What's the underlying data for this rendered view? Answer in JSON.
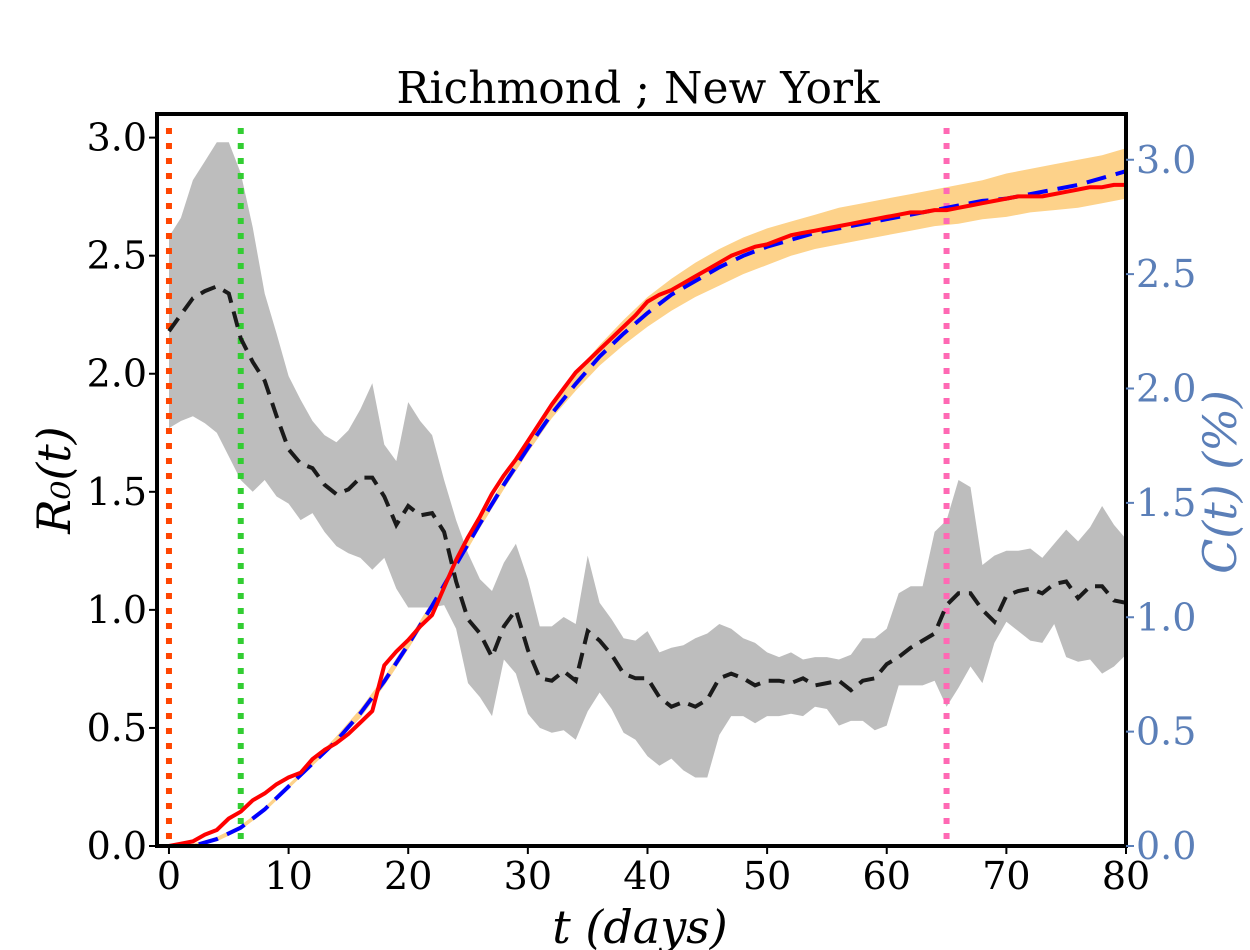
{
  "chart_data": {
    "type": "line",
    "title": "Richmond ; New York",
    "xlabel": "t (days)",
    "ylabel_left": "R₀(t)",
    "ylabel_right": "C(t) (%)",
    "xlim": [
      -1,
      80
    ],
    "ylim_left": [
      0,
      3.1
    ],
    "ylim_right": [
      0,
      3.2
    ],
    "xticks": [
      "0",
      "10",
      "20",
      "30",
      "40",
      "50",
      "60",
      "70",
      "80"
    ],
    "yticks_left": [
      "0.0",
      "0.5",
      "1.0",
      "1.5",
      "2.0",
      "2.5",
      "3.0"
    ],
    "yticks_right": [
      "0.0",
      "0.5",
      "1.0",
      "1.5",
      "2.0",
      "2.5",
      "3.0"
    ],
    "grid": false,
    "colors": {
      "r0_mean": "#1a1a1a",
      "r0_band": "#bdbdbd",
      "cases_observed": "#ff0000",
      "cases_model": "#0000ff",
      "cases_band": "#fdd28a",
      "right_axis": "#5b7fb8",
      "vline_start": "#ff4500",
      "vline_intervention": "#32cd32",
      "vline_late": "#ff69b4"
    },
    "vlines": [
      {
        "x": 0,
        "color_key": "vline_start"
      },
      {
        "x": 6,
        "color_key": "vline_intervention"
      },
      {
        "x": 65,
        "color_key": "vline_late"
      }
    ],
    "series": [
      {
        "id": "r0_mean",
        "axis": "left",
        "style": "dashed",
        "x": [
          0,
          1,
          2,
          3,
          4,
          5,
          6,
          7,
          8,
          9,
          10,
          11,
          12,
          13,
          14,
          15,
          16,
          17,
          18,
          19,
          20,
          21,
          22,
          23,
          24,
          25,
          26,
          27,
          28,
          29,
          30,
          31,
          32,
          33,
          34,
          35,
          36,
          37,
          38,
          39,
          40,
          41,
          42,
          43,
          44,
          45,
          46,
          47,
          48,
          49,
          50,
          51,
          52,
          53,
          54,
          55,
          56,
          57,
          58,
          59,
          60,
          61,
          62,
          63,
          64,
          65,
          66,
          67,
          68,
          69,
          70,
          71,
          72,
          73,
          74,
          75,
          76,
          77,
          78,
          79,
          80
        ],
        "values": [
          2.18,
          2.25,
          2.32,
          2.35,
          2.37,
          2.34,
          2.15,
          2.05,
          1.97,
          1.82,
          1.68,
          1.62,
          1.6,
          1.53,
          1.49,
          1.51,
          1.56,
          1.56,
          1.48,
          1.36,
          1.44,
          1.4,
          1.41,
          1.33,
          1.12,
          0.96,
          0.9,
          0.8,
          0.93,
          1.0,
          0.83,
          0.71,
          0.7,
          0.74,
          0.7,
          0.91,
          0.87,
          0.81,
          0.73,
          0.71,
          0.71,
          0.63,
          0.59,
          0.61,
          0.59,
          0.62,
          0.71,
          0.73,
          0.71,
          0.68,
          0.7,
          0.7,
          0.69,
          0.71,
          0.68,
          0.69,
          0.7,
          0.66,
          0.7,
          0.71,
          0.77,
          0.8,
          0.84,
          0.87,
          0.9,
          1.02,
          1.07,
          1.07,
          1.0,
          0.95,
          1.06,
          1.08,
          1.09,
          1.07,
          1.11,
          1.12,
          1.05,
          1.1,
          1.1,
          1.04,
          1.03
        ]
      },
      {
        "id": "r0_upper",
        "axis": "left",
        "style": "band",
        "x": [
          0,
          1,
          2,
          3,
          4,
          5,
          6,
          7,
          8,
          9,
          10,
          11,
          12,
          13,
          14,
          15,
          16,
          17,
          18,
          19,
          20,
          21,
          22,
          23,
          24,
          25,
          26,
          27,
          28,
          29,
          30,
          31,
          32,
          33,
          34,
          35,
          36,
          37,
          38,
          39,
          40,
          41,
          42,
          43,
          44,
          45,
          46,
          47,
          48,
          49,
          50,
          51,
          52,
          53,
          54,
          55,
          56,
          57,
          58,
          59,
          60,
          61,
          62,
          63,
          64,
          65,
          66,
          67,
          68,
          69,
          70,
          71,
          72,
          73,
          74,
          75,
          76,
          77,
          78,
          79,
          80
        ],
        "values": [
          2.58,
          2.66,
          2.82,
          2.9,
          2.98,
          2.98,
          2.85,
          2.62,
          2.34,
          2.17,
          1.99,
          1.89,
          1.8,
          1.74,
          1.71,
          1.76,
          1.85,
          1.96,
          1.7,
          1.63,
          1.88,
          1.8,
          1.74,
          1.55,
          1.38,
          1.24,
          1.13,
          1.08,
          1.2,
          1.28,
          1.13,
          0.93,
          0.93,
          0.97,
          0.94,
          1.23,
          1.03,
          0.96,
          0.88,
          0.87,
          0.91,
          0.82,
          0.84,
          0.85,
          0.88,
          0.9,
          0.94,
          0.92,
          0.88,
          0.86,
          0.82,
          0.8,
          0.82,
          0.79,
          0.8,
          0.8,
          0.79,
          0.81,
          0.88,
          0.88,
          0.92,
          1.07,
          1.1,
          1.1,
          1.33,
          1.38,
          1.55,
          1.52,
          1.19,
          1.23,
          1.25,
          1.25,
          1.26,
          1.22,
          1.28,
          1.34,
          1.29,
          1.35,
          1.44,
          1.36,
          1.3
        ]
      },
      {
        "id": "r0_lower",
        "axis": "left",
        "style": "band",
        "x": [
          0,
          1,
          2,
          3,
          4,
          5,
          6,
          7,
          8,
          9,
          10,
          11,
          12,
          13,
          14,
          15,
          16,
          17,
          18,
          19,
          20,
          21,
          22,
          23,
          24,
          25,
          26,
          27,
          28,
          29,
          30,
          31,
          32,
          33,
          34,
          35,
          36,
          37,
          38,
          39,
          40,
          41,
          42,
          43,
          44,
          45,
          46,
          47,
          48,
          49,
          50,
          51,
          52,
          53,
          54,
          55,
          56,
          57,
          58,
          59,
          60,
          61,
          62,
          63,
          64,
          65,
          66,
          67,
          68,
          69,
          70,
          71,
          72,
          73,
          74,
          75,
          76,
          77,
          78,
          79,
          80
        ],
        "values": [
          1.77,
          1.8,
          1.82,
          1.79,
          1.75,
          1.65,
          1.55,
          1.5,
          1.55,
          1.48,
          1.45,
          1.38,
          1.41,
          1.33,
          1.27,
          1.24,
          1.22,
          1.17,
          1.22,
          1.09,
          1.01,
          1.01,
          1.01,
          1.02,
          0.92,
          0.69,
          0.63,
          0.55,
          0.79,
          0.73,
          0.56,
          0.5,
          0.48,
          0.49,
          0.45,
          0.57,
          0.65,
          0.58,
          0.48,
          0.45,
          0.38,
          0.34,
          0.37,
          0.32,
          0.29,
          0.29,
          0.47,
          0.55,
          0.55,
          0.52,
          0.55,
          0.55,
          0.56,
          0.55,
          0.59,
          0.58,
          0.51,
          0.53,
          0.53,
          0.49,
          0.51,
          0.68,
          0.68,
          0.68,
          0.7,
          0.59,
          0.67,
          0.76,
          0.69,
          0.86,
          0.95,
          0.91,
          0.87,
          0.86,
          0.94,
          0.8,
          0.78,
          0.79,
          0.73,
          0.76,
          0.81
        ]
      },
      {
        "id": "cases_observed",
        "axis": "right",
        "style": "solid",
        "x": [
          0,
          1,
          2,
          3,
          4,
          5,
          6,
          7,
          8,
          9,
          10,
          11,
          12,
          13,
          14,
          15,
          16,
          17,
          18,
          19,
          20,
          21,
          22,
          23,
          24,
          25,
          26,
          27,
          28,
          29,
          30,
          31,
          32,
          33,
          34,
          35,
          36,
          37,
          38,
          39,
          40,
          41,
          42,
          43,
          44,
          45,
          46,
          47,
          48,
          49,
          50,
          51,
          52,
          53,
          54,
          55,
          56,
          57,
          58,
          59,
          60,
          61,
          62,
          63,
          64,
          65,
          66,
          67,
          68,
          69,
          70,
          71,
          72,
          73,
          74,
          75,
          76,
          77,
          78,
          79,
          80
        ],
        "values": [
          0.0,
          0.01,
          0.02,
          0.05,
          0.07,
          0.12,
          0.15,
          0.2,
          0.23,
          0.27,
          0.3,
          0.32,
          0.38,
          0.42,
          0.45,
          0.49,
          0.54,
          0.59,
          0.79,
          0.85,
          0.9,
          0.96,
          1.01,
          1.13,
          1.25,
          1.35,
          1.44,
          1.54,
          1.62,
          1.69,
          1.77,
          1.85,
          1.93,
          2.0,
          2.07,
          2.12,
          2.17,
          2.22,
          2.27,
          2.32,
          2.38,
          2.41,
          2.43,
          2.46,
          2.49,
          2.52,
          2.55,
          2.58,
          2.6,
          2.62,
          2.63,
          2.65,
          2.67,
          2.68,
          2.69,
          2.7,
          2.71,
          2.72,
          2.73,
          2.74,
          2.75,
          2.76,
          2.77,
          2.77,
          2.78,
          2.78,
          2.79,
          2.8,
          2.81,
          2.82,
          2.83,
          2.84,
          2.84,
          2.84,
          2.85,
          2.86,
          2.87,
          2.88,
          2.88,
          2.89,
          2.89
        ]
      },
      {
        "id": "cases_model",
        "axis": "right",
        "style": "dashed",
        "x": [
          0,
          2,
          4,
          6,
          8,
          10,
          12,
          14,
          16,
          18,
          20,
          22,
          24,
          26,
          28,
          30,
          32,
          34,
          36,
          38,
          40,
          42,
          44,
          46,
          48,
          50,
          52,
          54,
          56,
          58,
          60,
          62,
          64,
          66,
          68,
          70,
          72,
          74,
          76,
          78,
          80
        ],
        "values": [
          0.0,
          0.0,
          0.03,
          0.08,
          0.16,
          0.26,
          0.36,
          0.46,
          0.58,
          0.72,
          0.88,
          1.05,
          1.23,
          1.41,
          1.58,
          1.74,
          1.89,
          2.02,
          2.14,
          2.24,
          2.33,
          2.41,
          2.47,
          2.53,
          2.58,
          2.62,
          2.65,
          2.68,
          2.7,
          2.72,
          2.74,
          2.76,
          2.78,
          2.8,
          2.82,
          2.83,
          2.85,
          2.87,
          2.89,
          2.92,
          2.95
        ]
      },
      {
        "id": "cases_band_upper",
        "axis": "right",
        "style": "band",
        "x": [
          0,
          2,
          4,
          6,
          8,
          10,
          12,
          14,
          16,
          18,
          20,
          22,
          24,
          26,
          28,
          30,
          32,
          34,
          36,
          38,
          40,
          42,
          44,
          46,
          48,
          50,
          52,
          54,
          56,
          58,
          60,
          62,
          64,
          66,
          68,
          70,
          72,
          74,
          76,
          78,
          80
        ],
        "values": [
          0.0,
          0.01,
          0.04,
          0.09,
          0.17,
          0.27,
          0.37,
          0.48,
          0.6,
          0.74,
          0.9,
          1.07,
          1.25,
          1.43,
          1.6,
          1.77,
          1.93,
          2.07,
          2.19,
          2.3,
          2.4,
          2.48,
          2.55,
          2.61,
          2.66,
          2.7,
          2.73,
          2.76,
          2.79,
          2.81,
          2.83,
          2.85,
          2.87,
          2.89,
          2.91,
          2.94,
          2.96,
          2.98,
          3.0,
          3.02,
          3.05
        ]
      },
      {
        "id": "cases_band_lower",
        "axis": "right",
        "style": "band",
        "x": [
          0,
          2,
          4,
          6,
          8,
          10,
          12,
          14,
          16,
          18,
          20,
          22,
          24,
          26,
          28,
          30,
          32,
          34,
          36,
          38,
          40,
          42,
          44,
          46,
          48,
          50,
          52,
          54,
          56,
          58,
          60,
          62,
          64,
          66,
          68,
          70,
          72,
          74,
          76,
          78,
          80
        ],
        "values": [
          0.0,
          0.0,
          0.02,
          0.07,
          0.15,
          0.25,
          0.35,
          0.45,
          0.56,
          0.7,
          0.86,
          1.03,
          1.21,
          1.39,
          1.56,
          1.72,
          1.87,
          1.99,
          2.1,
          2.19,
          2.27,
          2.34,
          2.4,
          2.45,
          2.5,
          2.54,
          2.58,
          2.61,
          2.63,
          2.65,
          2.67,
          2.69,
          2.71,
          2.72,
          2.74,
          2.75,
          2.77,
          2.78,
          2.79,
          2.81,
          2.83
        ]
      }
    ]
  }
}
